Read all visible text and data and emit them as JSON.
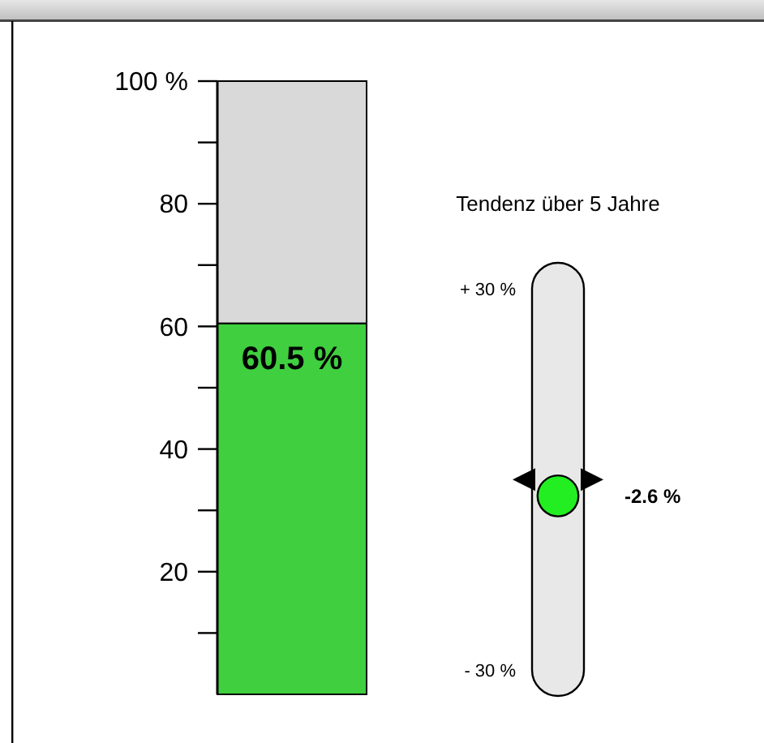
{
  "chart_data": [
    {
      "type": "bar",
      "stacked": true,
      "categories": [
        null
      ],
      "series": [
        {
          "color": "#3fcf3f",
          "values": [
            60.5
          ],
          "value_labels": [
            "60.5 %"
          ]
        },
        {
          "color": "#d9d9d9",
          "values": [
            39.5
          ]
        }
      ],
      "ylim": [
        0,
        100
      ],
      "yticks": [
        {
          "value": 10,
          "label": null
        },
        20,
        {
          "value": 30,
          "label": null
        },
        40,
        {
          "value": 50,
          "label": null
        },
        60,
        {
          "value": 70,
          "label": null
        },
        80,
        {
          "value": 90,
          "label": null
        },
        {
          "value": 100,
          "label": "100 %"
        }
      ]
    },
    {
      "type": "other",
      "title": "Tendenz über 5 Jahre",
      "series": [
        {
          "color": "#22ee22",
          "values": [
            -2.6
          ],
          "value_labels": [
            "-2.6 %"
          ]
        }
      ],
      "annotations": [
        "+ 30 %",
        "- 30 %"
      ]
    }
  ]
}
